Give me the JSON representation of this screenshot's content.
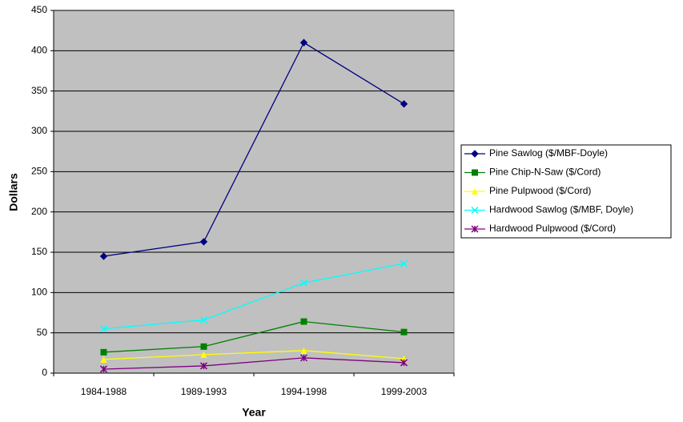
{
  "chart_data": {
    "type": "line",
    "x_label": "Year",
    "y_label": "Dollars",
    "categories": [
      "1984-1988",
      "1989-1993",
      "1994-1998",
      "1999-2003"
    ],
    "series": [
      {
        "name": "Pine Sawlog ($/MBF-Doyle)",
        "color": "#000080",
        "marker": "diamond",
        "values": [
          145,
          163,
          410,
          334
        ]
      },
      {
        "name": "Pine Chip-N-Saw ($/Cord)",
        "color": "#008000",
        "marker": "square",
        "values": [
          26,
          33,
          64,
          51
        ]
      },
      {
        "name": "Pine Pulpwood ($/Cord)",
        "color": "#ffff00",
        "marker": "triangle",
        "values": [
          17,
          23,
          28,
          18
        ]
      },
      {
        "name": "Hardwood Sawlog ($/MBF, Doyle)",
        "color": "#00ffff",
        "marker": "x",
        "values": [
          55,
          66,
          112,
          136
        ]
      },
      {
        "name": "Hardwood Pulpwood ($/Cord)",
        "color": "#800080",
        "marker": "asterisk",
        "values": [
          5,
          9,
          19,
          13
        ]
      }
    ],
    "ylim": [
      0,
      450
    ],
    "yticks": [
      0,
      50,
      100,
      150,
      200,
      250,
      300,
      350,
      400,
      450
    ],
    "grid": true,
    "legend": "right",
    "plot_background": "#c0c0c0"
  }
}
